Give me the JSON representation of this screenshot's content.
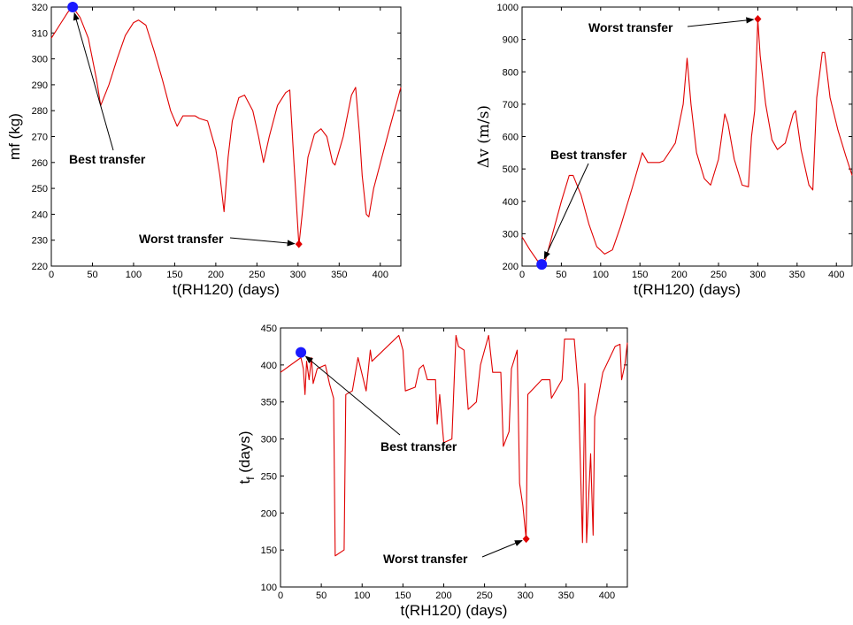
{
  "chart_data": [
    {
      "type": "line",
      "xlabel": "t(RH120) (days)",
      "ylabel": "mf (kg)",
      "xlim": [
        0,
        425
      ],
      "ylim": [
        220,
        320
      ],
      "xticks": [
        0,
        50,
        100,
        150,
        200,
        250,
        300,
        350,
        400
      ],
      "yticks": [
        220,
        230,
        240,
        250,
        260,
        270,
        280,
        290,
        300,
        310,
        320
      ],
      "series_color": "#e00000",
      "series": [
        {
          "values": [
            [
              0,
              308
            ],
            [
              10,
              313
            ],
            [
              20,
              318
            ],
            [
              26,
              320
            ],
            [
              35,
              316
            ],
            [
              45,
              308
            ],
            [
              55,
              292
            ],
            [
              60,
              282
            ],
            [
              70,
              290
            ],
            [
              80,
              300
            ],
            [
              90,
              309
            ],
            [
              100,
              314
            ],
            [
              106,
              315
            ],
            [
              115,
              313
            ],
            [
              125,
              303
            ],
            [
              135,
              292
            ],
            [
              145,
              280
            ],
            [
              153,
              274
            ],
            [
              160,
              278
            ],
            [
              175,
              278
            ],
            [
              180,
              277
            ],
            [
              190,
              276
            ],
            [
              200,
              265
            ],
            [
              205,
              255
            ],
            [
              210,
              241
            ],
            [
              215,
              262
            ],
            [
              220,
              276
            ],
            [
              228,
              285
            ],
            [
              235,
              286
            ],
            [
              245,
              280
            ],
            [
              252,
              270
            ],
            [
              258,
              260
            ],
            [
              265,
              270
            ],
            [
              275,
              282
            ],
            [
              285,
              287
            ],
            [
              290,
              288
            ],
            [
              295,
              260
            ],
            [
              301,
              228
            ],
            [
              305,
              240
            ],
            [
              312,
              262
            ],
            [
              320,
              271
            ],
            [
              328,
              273
            ],
            [
              335,
              270
            ],
            [
              342,
              260
            ],
            [
              345,
              259
            ],
            [
              355,
              270
            ],
            [
              365,
              286
            ],
            [
              370,
              289
            ],
            [
              375,
              270
            ],
            [
              378,
              255
            ],
            [
              383,
              240
            ],
            [
              386,
              239
            ],
            [
              392,
              250
            ],
            [
              402,
              262
            ],
            [
              412,
              274
            ],
            [
              425,
              289
            ]
          ]
        }
      ],
      "best": {
        "x": 26,
        "y": 320,
        "color": "#1a1aff"
      },
      "worst": {
        "x": 301,
        "y": 228.5,
        "color": "#e00000"
      },
      "annotations": [
        {
          "text": "Best transfer",
          "x": 75,
          "y": 280,
          "point": "best"
        },
        {
          "text": "Worst transfer",
          "x": 220,
          "y": 230,
          "point": "worst"
        }
      ]
    },
    {
      "type": "line",
      "xlabel": "t(RH120) (days)",
      "ylabel": "Δv (m/s)",
      "xlim": [
        0,
        420
      ],
      "ylim": [
        200,
        1000
      ],
      "xticks": [
        0,
        50,
        100,
        150,
        200,
        250,
        300,
        350,
        400
      ],
      "yticks": [
        200,
        300,
        400,
        500,
        600,
        700,
        800,
        900,
        1000
      ],
      "series_color": "#e00000",
      "series": [
        {
          "values": [
            [
              0,
              290
            ],
            [
              10,
              250
            ],
            [
              20,
              215
            ],
            [
              25,
              205
            ],
            [
              30,
              220
            ],
            [
              40,
              310
            ],
            [
              50,
              400
            ],
            [
              60,
              480
            ],
            [
              65,
              480
            ],
            [
              75,
              420
            ],
            [
              85,
              330
            ],
            [
              95,
              260
            ],
            [
              105,
              237
            ],
            [
              115,
              250
            ],
            [
              125,
              320
            ],
            [
              140,
              440
            ],
            [
              153,
              550
            ],
            [
              160,
              520
            ],
            [
              175,
              520
            ],
            [
              180,
              525
            ],
            [
              195,
              580
            ],
            [
              205,
              700
            ],
            [
              210,
              842
            ],
            [
              215,
              700
            ],
            [
              222,
              550
            ],
            [
              232,
              470
            ],
            [
              240,
              450
            ],
            [
              250,
              530
            ],
            [
              258,
              670
            ],
            [
              262,
              640
            ],
            [
              270,
              530
            ],
            [
              280,
              450
            ],
            [
              288,
              445
            ],
            [
              292,
              600
            ],
            [
              296,
              680
            ],
            [
              300,
              963
            ],
            [
              303,
              850
            ],
            [
              310,
              700
            ],
            [
              318,
              590
            ],
            [
              325,
              560
            ],
            [
              335,
              580
            ],
            [
              345,
              670
            ],
            [
              348,
              680
            ],
            [
              355,
              560
            ],
            [
              365,
              450
            ],
            [
              370,
              435
            ],
            [
              375,
              720
            ],
            [
              382,
              860
            ],
            [
              385,
              860
            ],
            [
              392,
              720
            ],
            [
              402,
              620
            ],
            [
              412,
              540
            ],
            [
              420,
              480
            ]
          ]
        }
      ],
      "best": {
        "x": 25,
        "y": 205,
        "color": "#1a1aff"
      },
      "worst": {
        "x": 300,
        "y": 963,
        "color": "#e00000"
      },
      "annotations": [
        {
          "text": "Best transfer",
          "x": 60,
          "y": 490,
          "point": "best"
        },
        {
          "text": "Worst transfer",
          "x": 130,
          "y": 920,
          "point": "worst"
        }
      ]
    },
    {
      "type": "line",
      "xlabel": "t(RH120) (days)",
      "ylabel": "t_f (days)",
      "xlim": [
        0,
        425
      ],
      "ylim": [
        100,
        450
      ],
      "xticks": [
        0,
        50,
        100,
        150,
        200,
        250,
        300,
        350,
        400
      ],
      "yticks": [
        100,
        150,
        200,
        250,
        300,
        350,
        400,
        450
      ],
      "series_color": "#e00000",
      "series": [
        {
          "values": [
            [
              0,
              390
            ],
            [
              25,
              410
            ],
            [
              28,
              395
            ],
            [
              30,
              360
            ],
            [
              32,
              405
            ],
            [
              35,
              380
            ],
            [
              38,
              410
            ],
            [
              40,
              375
            ],
            [
              45,
              395
            ],
            [
              55,
              400
            ],
            [
              60,
              375
            ],
            [
              65,
              355
            ],
            [
              67,
              142
            ],
            [
              78,
              150
            ],
            [
              80,
              360
            ],
            [
              88,
              365
            ],
            [
              95,
              410
            ],
            [
              105,
              365
            ],
            [
              110,
              420
            ],
            [
              112,
              405
            ],
            [
              145,
              440
            ],
            [
              150,
              420
            ],
            [
              153,
              365
            ],
            [
              165,
              370
            ],
            [
              170,
              395
            ],
            [
              175,
              400
            ],
            [
              180,
              380
            ],
            [
              190,
              380
            ],
            [
              192,
              320
            ],
            [
              195,
              360
            ],
            [
              200,
              295
            ],
            [
              210,
              300
            ],
            [
              215,
              440
            ],
            [
              218,
              425
            ],
            [
              225,
              420
            ],
            [
              230,
              340
            ],
            [
              240,
              350
            ],
            [
              245,
              400
            ],
            [
              255,
              440
            ],
            [
              260,
              390
            ],
            [
              270,
              390
            ],
            [
              273,
              290
            ],
            [
              280,
              310
            ],
            [
              283,
              395
            ],
            [
              290,
              420
            ],
            [
              293,
              240
            ],
            [
              297,
              210
            ],
            [
              301,
              165
            ],
            [
              303,
              360
            ],
            [
              320,
              380
            ],
            [
              330,
              380
            ],
            [
              332,
              355
            ],
            [
              345,
              380
            ],
            [
              348,
              435
            ],
            [
              360,
              435
            ],
            [
              365,
              365
            ],
            [
              370,
              160
            ],
            [
              373,
              375
            ],
            [
              375,
              160
            ],
            [
              380,
              280
            ],
            [
              383,
              170
            ],
            [
              385,
              330
            ],
            [
              395,
              390
            ],
            [
              410,
              425
            ],
            [
              416,
              428
            ],
            [
              418,
              380
            ],
            [
              422,
              400
            ],
            [
              425,
              430
            ]
          ]
        }
      ],
      "best": {
        "x": 25,
        "y": 417,
        "color": "#1a1aff"
      },
      "worst": {
        "x": 301,
        "y": 165,
        "color": "#e00000"
      },
      "annotations": [
        {
          "text": "Best transfer",
          "x": 115,
          "y": 320,
          "point": "best"
        },
        {
          "text": "Worst transfer",
          "x": 115,
          "y": 148,
          "point": "worst"
        }
      ]
    }
  ]
}
